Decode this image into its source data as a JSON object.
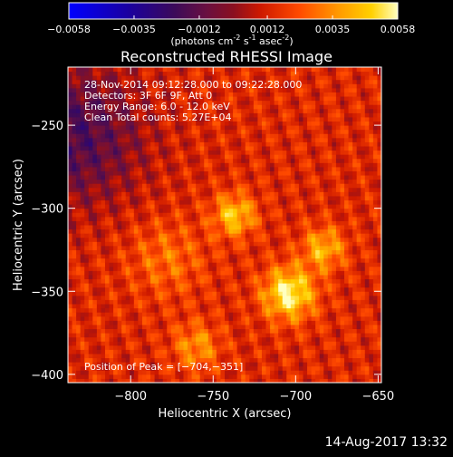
{
  "colorbar": {
    "ticks": [
      "-0.0058",
      "-0.0035",
      "-0.0012",
      "0.0012",
      "0.0035",
      "0.0058"
    ],
    "units_main": "(photons cm",
    "units_sup1": "-2",
    "units_mid": " s",
    "units_sup2": "-1",
    "units_end": " asec",
    "units_sup3": "-2",
    "units_close": ")",
    "range": [
      -0.0058,
      0.0058
    ]
  },
  "chart_data": {
    "type": "heatmap",
    "title": "Reconstructed RHESSI Image",
    "xlabel": "Heliocentric X (arcsec)",
    "ylabel": "Heliocentric Y (arcsec)",
    "xlim": [
      -838,
      -648
    ],
    "ylim": [
      -405,
      -215
    ],
    "xticks": [
      -800,
      -750,
      -700,
      -650
    ],
    "yticks": [
      -250,
      -300,
      -350,
      -400
    ],
    "xtick_labels": [
      "−800",
      "−750",
      "−700",
      "−650"
    ],
    "ytick_labels": [
      "−250",
      "−300",
      "−350",
      "−400"
    ],
    "peak": [
      -704,
      -351
    ],
    "sources": [
      {
        "x": -704,
        "y": -351,
        "amp": 1.0,
        "width": 11
      },
      {
        "x": -737,
        "y": -304,
        "amp": 0.75,
        "width": 9
      },
      {
        "x": -683,
        "y": -324,
        "amp": 0.65,
        "width": 9
      },
      {
        "x": -760,
        "y": -383,
        "amp": 0.5,
        "width": 10
      },
      {
        "x": -778,
        "y": -330,
        "amp": 0.35,
        "width": 16
      }
    ],
    "annotations": [
      "28-Nov-2014 09:12:28.000 to 09:22:28.000",
      "Detectors: 3F 6F 9F, Att 0",
      "Energy Range: 6.0 - 12.0 keV",
      "Clean    Total counts: 5.27E+04"
    ],
    "peak_label": "Position of Peak = [−704,−351]"
  },
  "footer": "14-Aug-2017 13:32"
}
